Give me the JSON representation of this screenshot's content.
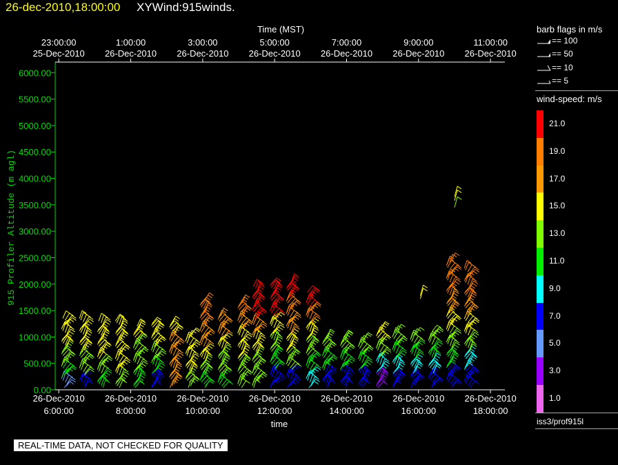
{
  "header": {
    "timestamp": "26-dec-2010,18:00:00",
    "product": "XYWind:915winds."
  },
  "legend": {
    "flags_title": "barb flags in m/s",
    "flags": [
      "== 100",
      "== 50",
      "== 10",
      "== 5"
    ],
    "colorbar_title": "wind-speed: m/s",
    "colorbar": [
      {
        "label": "21.0",
        "color": "#ff0000"
      },
      {
        "label": "19.0",
        "color": "#ff7f00"
      },
      {
        "label": "17.0",
        "color": "#ff9900"
      },
      {
        "label": "15.0",
        "color": "#ffff00"
      },
      {
        "label": "13.0",
        "color": "#80ff00"
      },
      {
        "label": "11.0",
        "color": "#00ee00"
      },
      {
        "label": "9.0",
        "color": "#00ffff"
      },
      {
        "label": "7.0",
        "color": "#0000ff"
      },
      {
        "label": "5.0",
        "color": "#6699ff"
      },
      {
        "label": "3.0",
        "color": "#9900ff"
      },
      {
        "label": "1.0",
        "color": "#ee66ee"
      }
    ],
    "instrument": "iss3/prof915l"
  },
  "footer": "REAL-TIME DATA, NOT CHECKED FOR QUALITY",
  "chart_data": {
    "type": "scatter",
    "title": "",
    "top_axis_label": "Time (MST)",
    "xlabel": "time",
    "ylabel": "915 Profiler Altitude (m agl)",
    "xlim": [
      5.9,
      18.4
    ],
    "ylim": [
      0,
      6200
    ],
    "yticks": [
      0,
      500,
      1000,
      1500,
      2000,
      2500,
      3000,
      3500,
      4000,
      4500,
      5000,
      5500,
      6000
    ],
    "ytick_labels": [
      "0.00",
      "500.00",
      "1000.00",
      "1500.00",
      "2000.00",
      "2500.00",
      "3000.00",
      "3500.00",
      "4000.00",
      "4500.00",
      "5000.00",
      "5500.00",
      "6000.00"
    ],
    "bottom_ticks": [
      {
        "x": 6,
        "date": "26-Dec-2010",
        "time": "6:00:00"
      },
      {
        "x": 8,
        "date": "26-Dec-2010",
        "time": "8:00:00"
      },
      {
        "x": 10,
        "date": "26-Dec-2010",
        "time": "10:00:00"
      },
      {
        "x": 12,
        "date": "26-Dec-2010",
        "time": "12:00:00"
      },
      {
        "x": 14,
        "date": "26-Dec-2010",
        "time": "14:00:00"
      },
      {
        "x": 16,
        "date": "26-Dec-2010",
        "time": "16:00:00"
      },
      {
        "x": 18,
        "date": "26-Dec-2010",
        "time": "18:00:00"
      }
    ],
    "top_ticks": [
      {
        "x": 6,
        "time": "23:00:00",
        "date": "25-Dec-2010"
      },
      {
        "x": 8,
        "time": "1:00:00",
        "date": "26-Dec-2010"
      },
      {
        "x": 10,
        "time": "3:00:00",
        "date": "26-Dec-2010"
      },
      {
        "x": 12,
        "time": "5:00:00",
        "date": "26-Dec-2010"
      },
      {
        "x": 14,
        "time": "7:00:00",
        "date": "26-Dec-2010"
      },
      {
        "x": 16,
        "time": "9:00:00",
        "date": "26-Dec-2010"
      },
      {
        "x": 18,
        "time": "11:00:00",
        "date": "26-Dec-2010"
      }
    ],
    "grid": false,
    "profiles": [
      {
        "t": 6.15,
        "top": 1350,
        "speeds": [
          5,
          11,
          12,
          13,
          14,
          15,
          15
        ]
      },
      {
        "t": 6.65,
        "top": 1350,
        "speeds": [
          7,
          12,
          13,
          14,
          15,
          15
        ]
      },
      {
        "t": 7.15,
        "top": 1300,
        "speeds": [
          11,
          13,
          14,
          15,
          15
        ]
      },
      {
        "t": 7.65,
        "top": 1300,
        "speeds": [
          12,
          14,
          15,
          15,
          14
        ]
      },
      {
        "t": 8.15,
        "top": 1200,
        "speeds": [
          11,
          12,
          13,
          14
        ]
      },
      {
        "t": 8.65,
        "top": 1250,
        "speeds": [
          7,
          11,
          13,
          14,
          15
        ]
      },
      {
        "t": 9.15,
        "top": 1250,
        "speeds": [
          17,
          17,
          16,
          16,
          15
        ]
      },
      {
        "t": 9.6,
        "top": 1050,
        "speeds": [
          13,
          15,
          15,
          14
        ]
      },
      {
        "t": 10.0,
        "top": 1700,
        "speeds": [
          11,
          13,
          15,
          16,
          17,
          18,
          18
        ]
      },
      {
        "t": 10.5,
        "top": 1400,
        "speeds": [
          11,
          12,
          13,
          15,
          16,
          17
        ]
      },
      {
        "t": 11.05,
        "top": 1650,
        "speeds": [
          12,
          13,
          14,
          15,
          17,
          18
        ]
      },
      {
        "t": 11.45,
        "top": 1950,
        "speeds": [
          12,
          13,
          15,
          17,
          20,
          21
        ]
      },
      {
        "t": 11.95,
        "top": 2000,
        "speeds": [
          7,
          11,
          13,
          15,
          20,
          21
        ]
      },
      {
        "t": 12.4,
        "top": 2050,
        "speeds": [
          7,
          12,
          14,
          16,
          19,
          21
        ]
      },
      {
        "t": 12.95,
        "top": 1850,
        "speeds": [
          9,
          11,
          13,
          15,
          18,
          20
        ]
      },
      {
        "t": 13.4,
        "top": 1000,
        "speeds": [
          7,
          11,
          12
        ]
      },
      {
        "t": 13.9,
        "top": 1000,
        "speeds": [
          7,
          10,
          12
        ]
      },
      {
        "t": 14.4,
        "top": 950,
        "speeds": [
          7,
          11,
          12
        ]
      },
      {
        "t": 14.9,
        "top": 1150,
        "speeds": [
          3,
          9,
          12,
          14
        ]
      },
      {
        "t": 15.35,
        "top": 1100,
        "speeds": [
          7,
          9,
          11,
          13
        ]
      },
      {
        "t": 15.85,
        "top": 1050,
        "speeds": [
          7,
          9,
          11,
          12
        ]
      },
      {
        "t": 16.35,
        "top": 1100,
        "speeds": [
          7,
          9,
          11,
          12
        ]
      },
      {
        "t": 16.85,
        "top": 2450,
        "speeds": [
          7,
          11,
          13,
          15,
          17,
          19,
          19
        ]
      },
      {
        "t": 17.35,
        "top": 2300,
        "speeds": [
          7,
          9,
          13,
          15,
          16,
          18,
          19
        ]
      }
    ],
    "upper_barbs": [
      {
        "t": 16.05,
        "alt": 1780,
        "speed": 15
      },
      {
        "t": 16.05,
        "alt": 1720,
        "speed": 15
      },
      {
        "t": 17.0,
        "alt": 3650,
        "speed": 15
      },
      {
        "t": 17.0,
        "alt": 3580,
        "speed": 15
      },
      {
        "t": 17.0,
        "alt": 3450,
        "speed": 13
      }
    ]
  }
}
